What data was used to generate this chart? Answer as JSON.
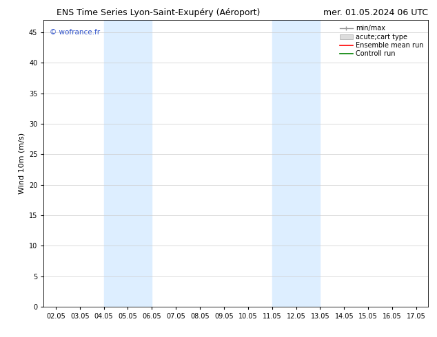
{
  "title_left": "ENS Time Series Lyon-Saint-Exupéry (Aéroport)",
  "title_right": "mer. 01.05.2024 06 UTC",
  "ylabel": "Wind 10m (m/s)",
  "watermark": "© wofrance.fr",
  "xlim_start": 1.5,
  "xlim_end": 17.5,
  "ylim": [
    0,
    47
  ],
  "yticks": [
    0,
    5,
    10,
    15,
    20,
    25,
    30,
    35,
    40,
    45
  ],
  "xtick_labels": [
    "02.05",
    "03.05",
    "04.05",
    "05.05",
    "06.05",
    "07.05",
    "08.05",
    "09.05",
    "10.05",
    "11.05",
    "12.05",
    "13.05",
    "14.05",
    "15.05",
    "16.05",
    "17.05"
  ],
  "xtick_positions": [
    2,
    3,
    4,
    5,
    6,
    7,
    8,
    9,
    10,
    11,
    12,
    13,
    14,
    15,
    16,
    17
  ],
  "shaded_bands": [
    {
      "xmin": 4.0,
      "xmax": 6.0,
      "color": "#ddeeff"
    },
    {
      "xmin": 11.0,
      "xmax": 13.0,
      "color": "#ddeeff"
    }
  ],
  "background_color": "#ffffff",
  "plot_bg_color": "#ffffff",
  "grid_color": "#cccccc",
  "title_fontsize": 9,
  "label_fontsize": 8,
  "tick_fontsize": 7,
  "legend_fontsize": 7,
  "watermark_fontsize": 7.5,
  "watermark_color": "#3355cc"
}
